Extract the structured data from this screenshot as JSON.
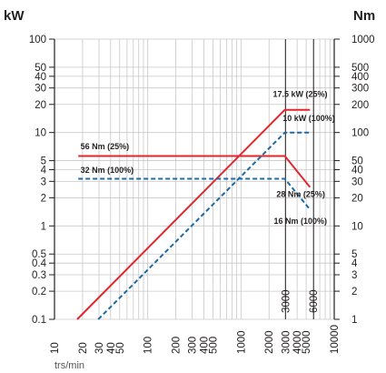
{
  "chart_data": {
    "type": "line",
    "title": "",
    "left_axis": {
      "label": "kW",
      "scale": "log",
      "range": [
        0.1,
        100
      ],
      "ticks": [
        "0.1",
        "0.2",
        "0.3",
        "0.4",
        "0.5",
        "1",
        "2",
        "3",
        "4",
        "5",
        "10",
        "20",
        "30",
        "40",
        "50",
        "100"
      ]
    },
    "right_axis": {
      "label": "Nm",
      "scale": "log",
      "range": [
        1,
        1000
      ],
      "ticks": [
        "1",
        "2",
        "3",
        "4",
        "5",
        "10",
        "20",
        "30",
        "40",
        "50",
        "100",
        "200",
        "300",
        "400",
        "500",
        "1000"
      ]
    },
    "x_axis": {
      "label": "trs/min",
      "scale": "log",
      "range": [
        10,
        10000
      ],
      "ticks": [
        "10",
        "20",
        "30",
        "40",
        "50",
        "100",
        "200",
        "300",
        "400",
        "500",
        "1000",
        "2000",
        "3000",
        "4000",
        "5000",
        "10000"
      ]
    },
    "grid": true,
    "vertical_markers": [
      {
        "x": 3000,
        "label": "3000"
      },
      {
        "x": 6000,
        "label": "6000"
      }
    ],
    "colors": {
      "peak": "#e3262e",
      "continuous": "#1e6aa8",
      "grid": "#c8c8c8"
    },
    "series": [
      {
        "key": "peak_power",
        "style": "solid",
        "axis": "left",
        "points": [
          [
            17.5,
            0.1
          ],
          [
            2950,
            17.5
          ],
          [
            5500,
            17.5
          ]
        ]
      },
      {
        "key": "peak_torque",
        "style": "solid",
        "axis": "right",
        "points": [
          [
            18,
            56
          ],
          [
            2950,
            56
          ],
          [
            5500,
            26
          ]
        ]
      },
      {
        "key": "continuous_power",
        "style": "dashed",
        "axis": "left",
        "points": [
          [
            29.5,
            0.1
          ],
          [
            2950,
            10
          ],
          [
            5500,
            10
          ]
        ]
      },
      {
        "key": "continuous_torque",
        "style": "dashed",
        "axis": "right",
        "points": [
          [
            18,
            32
          ],
          [
            2950,
            32
          ],
          [
            5500,
            15
          ]
        ]
      }
    ],
    "annotations": [
      {
        "text": "56 Nm (25%)",
        "x": 19,
        "y": 6.6
      },
      {
        "text": "32 Nm (100%)",
        "x": 19,
        "y": 3.7
      },
      {
        "text": "17.5 kW (25%)",
        "x": 2200,
        "y": 24
      },
      {
        "text": "10 kW (100%)",
        "x": 2800,
        "y": 13.3
      },
      {
        "text": "28 Nm (25%)",
        "x": 2400,
        "y": 2.05
      },
      {
        "text": "16 Nm (100%)",
        "x": 2250,
        "y": 1.05
      }
    ]
  }
}
